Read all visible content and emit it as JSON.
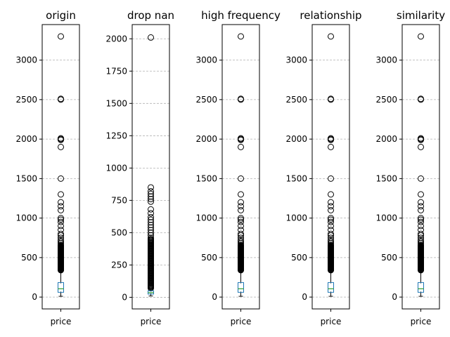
{
  "chart_data": [
    {
      "type": "box",
      "title": "origin",
      "categories": [
        "price"
      ],
      "ylim": [
        -150,
        3450
      ],
      "yticks": [
        0,
        500,
        1000,
        1500,
        2000,
        2500,
        3000
      ],
      "grid": "y-dashed",
      "box": {
        "q1": 69,
        "median": 105,
        "q3": 175,
        "whisker_low": 10,
        "whisker_high": 334
      },
      "outliers_range": [
        340,
        650
      ],
      "outliers": [
        3300,
        2500,
        2510,
        2000,
        1990,
        2010,
        1900,
        1500,
        1300,
        1200,
        1150,
        1100,
        1000,
        980,
        950,
        900,
        850,
        800,
        780,
        750,
        720,
        700,
        680,
        660
      ]
    },
    {
      "type": "box",
      "title": "drop nan",
      "categories": [
        "price"
      ],
      "ylim": [
        -90,
        2110
      ],
      "yticks": [
        0,
        250,
        500,
        750,
        1000,
        1250,
        1500,
        1750,
        2000
      ],
      "grid": "y-dashed",
      "box": {
        "q1": 30,
        "median": 36,
        "q3": 45,
        "whisker_low": 10,
        "whisker_high": 68
      },
      "outliers_range": [
        70,
        450
      ],
      "outliers": [
        2010,
        850,
        820,
        800,
        780,
        760,
        740,
        680,
        650,
        620,
        600,
        580,
        560,
        540,
        520,
        500,
        480,
        460
      ]
    },
    {
      "type": "box",
      "title": "high frequency",
      "categories": [
        "price"
      ],
      "ylim": [
        -150,
        3450
      ],
      "yticks": [
        0,
        500,
        1000,
        1500,
        2000,
        2500,
        3000
      ],
      "grid": "y-dashed",
      "box": {
        "q1": 69,
        "median": 105,
        "q3": 175,
        "whisker_low": 10,
        "whisker_high": 334
      },
      "outliers_range": [
        340,
        650
      ],
      "outliers": [
        3300,
        2500,
        2510,
        2000,
        1990,
        2010,
        1900,
        1500,
        1300,
        1200,
        1150,
        1100,
        1000,
        980,
        950,
        900,
        850,
        800,
        780,
        750,
        720,
        700,
        680,
        660
      ]
    },
    {
      "type": "box",
      "title": "relationship",
      "categories": [
        "price"
      ],
      "ylim": [
        -150,
        3450
      ],
      "yticks": [
        0,
        500,
        1000,
        1500,
        2000,
        2500,
        3000
      ],
      "grid": "y-dashed",
      "box": {
        "q1": 69,
        "median": 105,
        "q3": 175,
        "whisker_low": 10,
        "whisker_high": 334
      },
      "outliers_range": [
        340,
        650
      ],
      "outliers": [
        3300,
        2500,
        2510,
        2000,
        1990,
        2010,
        1900,
        1500,
        1300,
        1200,
        1150,
        1100,
        1000,
        980,
        950,
        900,
        850,
        800,
        780,
        750,
        720,
        700,
        680,
        660
      ]
    },
    {
      "type": "box",
      "title": "similarity",
      "categories": [
        "price"
      ],
      "ylim": [
        -150,
        3450
      ],
      "yticks": [
        0,
        500,
        1000,
        1500,
        2000,
        2500,
        3000
      ],
      "grid": "y-dashed",
      "box": {
        "q1": 69,
        "median": 105,
        "q3": 175,
        "whisker_low": 10,
        "whisker_high": 334
      },
      "outliers_range": [
        340,
        650
      ],
      "outliers": [
        3300,
        2500,
        2510,
        2000,
        1990,
        2010,
        1900,
        1500,
        1300,
        1200,
        1150,
        1100,
        1000,
        980,
        950,
        900,
        850,
        800,
        780,
        750,
        720,
        700,
        680,
        660
      ]
    }
  ],
  "colors": {
    "box": "#1f77b4",
    "median": "#2ca02c",
    "grid": "#b0b0b0",
    "flier": "#000000"
  }
}
